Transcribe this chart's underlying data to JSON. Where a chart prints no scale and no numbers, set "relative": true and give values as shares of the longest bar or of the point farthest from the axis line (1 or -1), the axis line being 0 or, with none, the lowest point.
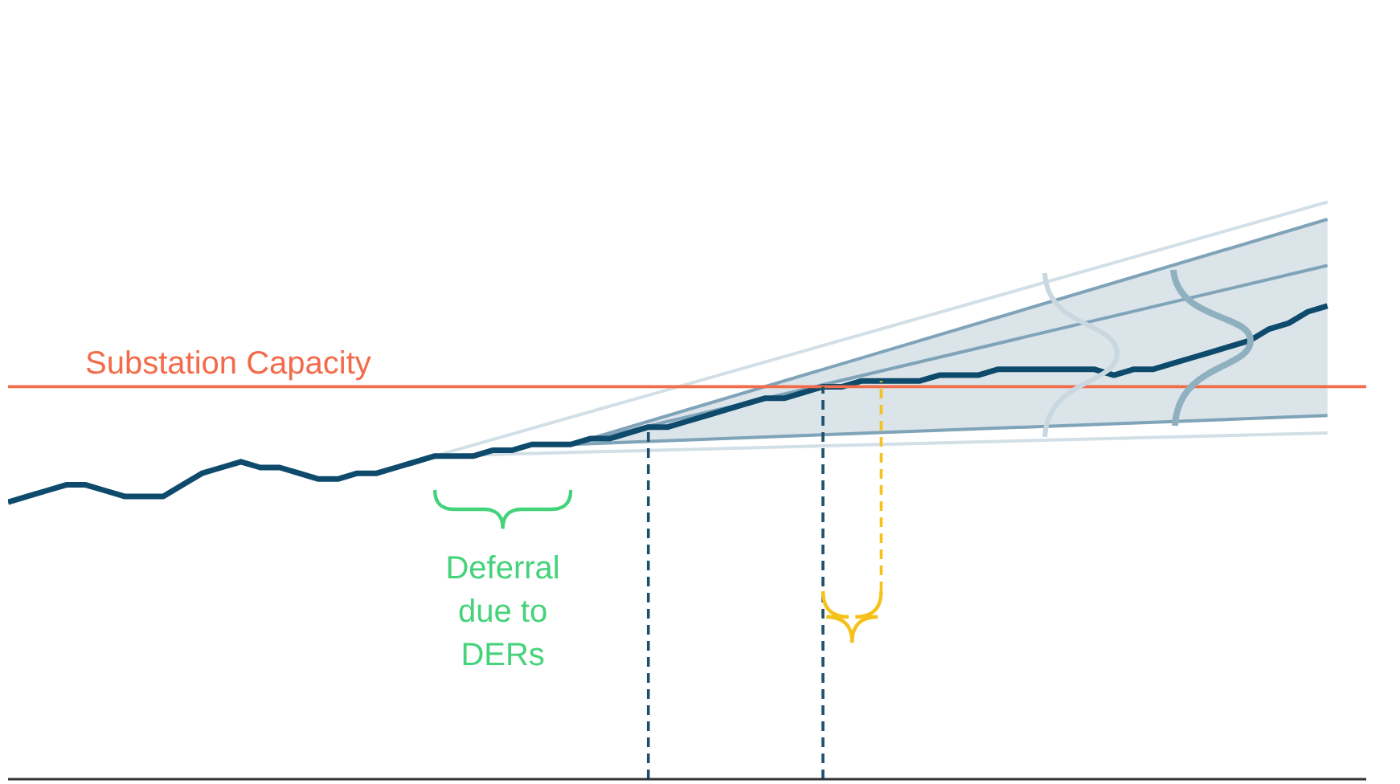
{
  "chart_data": {
    "type": "line",
    "relative": true,
    "categories": [
      null,
      null,
      null,
      null,
      null,
      null,
      null,
      null,
      null,
      null,
      null,
      null,
      null,
      null,
      null,
      null,
      null,
      null,
      null,
      null,
      null,
      null,
      null,
      null,
      null,
      null,
      null,
      null,
      null,
      null,
      null,
      null,
      null,
      null,
      null,
      null,
      null,
      null,
      null,
      null,
      null,
      null,
      null,
      null,
      null,
      null,
      null,
      null,
      null,
      null,
      null,
      null,
      null,
      null,
      null,
      null,
      null,
      null,
      null,
      null,
      null,
      null,
      null,
      null,
      null,
      null,
      null,
      null,
      null,
      null,
      null
    ],
    "series": [
      {
        "color": "#d3dfe7",
        "values": [
          null,
          null,
          null,
          null,
          null,
          null,
          null,
          null,
          null,
          null,
          null,
          null,
          null,
          null,
          null,
          null,
          null,
          null,
          null,
          null,
          null,
          null,
          0.56,
          null,
          null,
          null,
          null,
          null,
          null,
          null,
          null,
          null,
          null,
          null,
          null,
          null,
          null,
          null,
          null,
          null,
          null,
          null,
          null,
          null,
          null,
          null,
          null,
          null,
          null,
          null,
          null,
          null,
          null,
          null,
          null,
          null,
          null,
          null,
          null,
          null,
          null,
          null,
          null,
          null,
          null,
          null,
          null,
          null,
          1.0,
          null,
          null
        ]
      },
      {
        "color": "#d3dfe7",
        "values": [
          null,
          null,
          null,
          null,
          null,
          null,
          null,
          null,
          null,
          null,
          null,
          null,
          null,
          null,
          null,
          null,
          null,
          null,
          null,
          null,
          null,
          null,
          0.56,
          null,
          null,
          null,
          null,
          null,
          null,
          null,
          null,
          null,
          null,
          null,
          null,
          null,
          null,
          null,
          null,
          null,
          null,
          null,
          null,
          null,
          null,
          null,
          null,
          null,
          null,
          null,
          null,
          null,
          null,
          null,
          null,
          null,
          null,
          null,
          null,
          null,
          null,
          null,
          null,
          null,
          null,
          null,
          null,
          null,
          0.6,
          null,
          null
        ]
      },
      {
        "color": "#7fa3b8",
        "values": [
          null,
          null,
          null,
          null,
          null,
          null,
          null,
          null,
          null,
          null,
          null,
          null,
          null,
          null,
          null,
          null,
          null,
          null,
          null,
          null,
          null,
          null,
          null,
          null,
          null,
          null,
          null,
          null,
          null,
          0.58,
          null,
          null,
          null,
          null,
          null,
          null,
          null,
          null,
          null,
          null,
          null,
          null,
          null,
          null,
          null,
          null,
          null,
          null,
          null,
          null,
          null,
          null,
          null,
          null,
          null,
          null,
          null,
          null,
          null,
          null,
          null,
          null,
          null,
          null,
          null,
          null,
          null,
          null,
          0.97,
          null,
          null
        ]
      },
      {
        "color": "#7fa3b8",
        "values": [
          null,
          null,
          null,
          null,
          null,
          null,
          null,
          null,
          null,
          null,
          null,
          null,
          null,
          null,
          null,
          null,
          null,
          null,
          null,
          null,
          null,
          null,
          null,
          null,
          null,
          null,
          null,
          null,
          null,
          0.58,
          null,
          null,
          null,
          null,
          null,
          null,
          null,
          null,
          null,
          null,
          null,
          null,
          null,
          null,
          null,
          null,
          null,
          null,
          null,
          null,
          null,
          null,
          null,
          null,
          null,
          null,
          null,
          null,
          null,
          null,
          null,
          null,
          null,
          null,
          null,
          null,
          null,
          null,
          0.89,
          null,
          null
        ]
      },
      {
        "color": "#7fa3b8",
        "values": [
          null,
          null,
          null,
          null,
          null,
          null,
          null,
          null,
          null,
          null,
          null,
          null,
          null,
          null,
          null,
          null,
          null,
          null,
          null,
          null,
          null,
          null,
          null,
          null,
          null,
          null,
          null,
          null,
          null,
          0.58,
          null,
          null,
          null,
          null,
          null,
          null,
          null,
          null,
          null,
          null,
          null,
          null,
          null,
          null,
          null,
          null,
          null,
          null,
          null,
          null,
          null,
          null,
          null,
          null,
          null,
          null,
          null,
          null,
          null,
          null,
          null,
          null,
          null,
          null,
          null,
          null,
          null,
          null,
          0.63,
          null,
          null
        ]
      },
      {
        "color": "#0d4a6b",
        "values": [
          0.48,
          0.49,
          0.5,
          0.51,
          0.51,
          0.5,
          0.49,
          0.49,
          0.49,
          0.51,
          0.53,
          0.54,
          0.55,
          0.54,
          0.54,
          0.53,
          0.52,
          0.52,
          0.53,
          0.53,
          0.54,
          0.55,
          0.56,
          0.56,
          0.56,
          0.57,
          0.57,
          0.58,
          0.58,
          0.58,
          0.59,
          0.59,
          0.6,
          0.61,
          0.61,
          0.62,
          0.63,
          0.64,
          0.65,
          0.66,
          0.66,
          0.67,
          0.68,
          0.68,
          0.69,
          0.69,
          0.69,
          0.69,
          0.7,
          0.7,
          0.7,
          0.71,
          0.71,
          0.71,
          0.71,
          0.71,
          0.71,
          0.7,
          0.71,
          0.71,
          0.72,
          0.73,
          0.74,
          0.75,
          0.76,
          0.78,
          0.79,
          0.81,
          0.82,
          null,
          null
        ],
        "lower": [
          null,
          null,
          null,
          null,
          null,
          null,
          null,
          null,
          null,
          null,
          null,
          null,
          null,
          null,
          null,
          null,
          null,
          null,
          null,
          null,
          null,
          null,
          null,
          null,
          null,
          null,
          null,
          null,
          null,
          0.58,
          null,
          null,
          null,
          null,
          null,
          null,
          null,
          null,
          null,
          null,
          null,
          null,
          null,
          null,
          null,
          null,
          null,
          null,
          null,
          null,
          null,
          null,
          null,
          null,
          null,
          null,
          null,
          null,
          null,
          null,
          null,
          null,
          null,
          null,
          null,
          null,
          null,
          null,
          0.63,
          null,
          null
        ],
        "upper": [
          null,
          null,
          null,
          null,
          null,
          null,
          null,
          null,
          null,
          null,
          null,
          null,
          null,
          null,
          null,
          null,
          null,
          null,
          null,
          null,
          null,
          null,
          null,
          null,
          null,
          null,
          null,
          null,
          null,
          0.58,
          null,
          null,
          null,
          null,
          null,
          null,
          null,
          null,
          null,
          null,
          null,
          null,
          null,
          null,
          null,
          null,
          null,
          null,
          null,
          null,
          null,
          null,
          null,
          null,
          null,
          null,
          null,
          null,
          null,
          null,
          null,
          null,
          null,
          null,
          null,
          null,
          null,
          null,
          0.97,
          null,
          null
        ]
      }
    ],
    "ref_lines": [
      {
        "axis": "y",
        "value": 0.68,
        "label": "Substation Capacity",
        "color": "#f26b4a"
      }
    ],
    "annotations": [
      "Deferral due to DERs"
    ]
  }
}
